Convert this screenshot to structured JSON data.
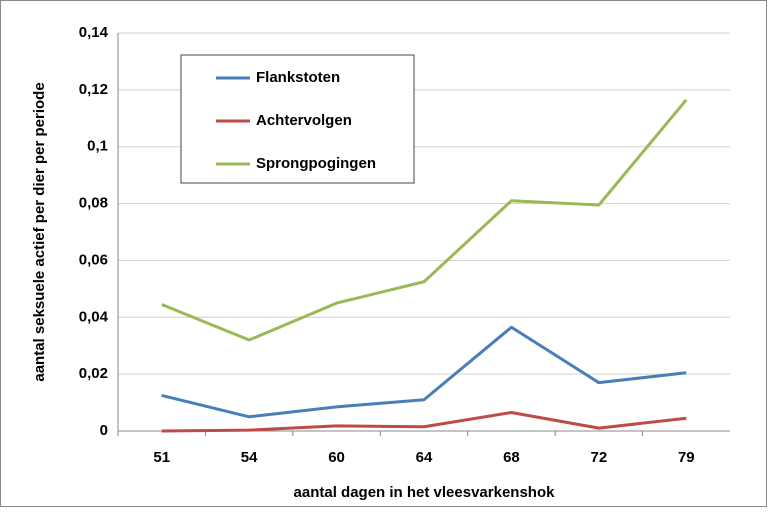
{
  "chart_data": {
    "type": "line",
    "x_label": "aantal dagen in het vleesvarkenshok",
    "y_label": "aantal seksuele actief per dier per periode",
    "categories": [
      "51",
      "54",
      "60",
      "64",
      "68",
      "72",
      "79"
    ],
    "series": [
      {
        "name": "Flankstoten",
        "color": "#4a7ebb",
        "values": [
          0.0125,
          0.005,
          0.0085,
          0.011,
          0.0365,
          0.017,
          0.0205
        ]
      },
      {
        "name": "Achtervolgen",
        "color": "#be4b48",
        "values": [
          0,
          0.0003,
          0.0018,
          0.0015,
          0.0065,
          0.001,
          0.0045
        ]
      },
      {
        "name": "Sprongpogingen",
        "color": "#98b954",
        "values": [
          0.0445,
          0.032,
          0.045,
          0.0525,
          0.081,
          0.0795,
          0.1165
        ]
      }
    ],
    "ylim": [
      0,
      0.14
    ],
    "yticks": [
      0,
      {
        "value": 0.02,
        "label": "0,02"
      },
      {
        "value": 0.04,
        "label": "0,04"
      },
      {
        "value": 0.06,
        "label": "0,06"
      },
      {
        "value": 0.08,
        "label": "0,08"
      },
      {
        "value": 0.1,
        "label": "0,1"
      },
      {
        "value": 0.12,
        "label": "0,12"
      },
      {
        "value": 0.14,
        "label": "0,14"
      }
    ],
    "grid": true,
    "legend": "upper left"
  }
}
